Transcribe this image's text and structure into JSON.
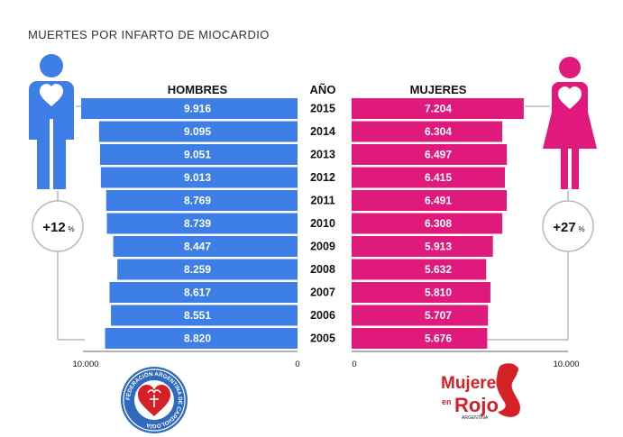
{
  "chart_data": {
    "type": "bar",
    "title": "MUERTES POR INFARTO DE MIOCARDIO",
    "year_header": "AÑO",
    "categories": [
      "2015",
      "2014",
      "2013",
      "2012",
      "2011",
      "2010",
      "2009",
      "2008",
      "2007",
      "2006",
      "2005"
    ],
    "series": [
      {
        "name": "HOMBRES",
        "values": [
          9916,
          9095,
          9051,
          9013,
          8769,
          8739,
          8447,
          8259,
          8617,
          8551,
          8820
        ],
        "labels": [
          "9.916",
          "9.095",
          "9.051",
          "9.013",
          "8.769",
          "8.739",
          "8.447",
          "8.259",
          "8.617",
          "8.551",
          "8.820"
        ],
        "color": "#3d7fe6",
        "change": "+12",
        "change_unit": "%"
      },
      {
        "name": "MUJERES",
        "values": [
          7204,
          6304,
          6497,
          6415,
          6491,
          6308,
          5913,
          5632,
          5810,
          5707,
          5676
        ],
        "labels": [
          "7.204",
          "6.304",
          "6.497",
          "6.415",
          "6.491",
          "6.308",
          "5.913",
          "5.632",
          "5.810",
          "5.707",
          "5.676"
        ],
        "color": "#e0197d",
        "change": "+27",
        "change_unit": "%"
      }
    ],
    "xlim": [
      0,
      10000
    ],
    "axis_ticks": {
      "left_max": "10.000",
      "left_zero": "0",
      "right_zero": "0",
      "right_max": "10.000"
    }
  },
  "logos": {
    "left": "FEDERACIÓN ARGENTINA DE CARDIOLOGÍA",
    "right_line1": "Mujeres",
    "right_line2": "en",
    "right_line3": "Rojo",
    "right_line4": "ARGENTINA"
  },
  "colors": {
    "men": "#3d7fe6",
    "women": "#e0197d",
    "bar_text": "#ffffff",
    "line": "#b9b9b9",
    "logo_blue": "#2e6bbf",
    "logo_red": "#d42027"
  },
  "icons": {
    "men": "man-heart-icon",
    "women": "woman-heart-icon"
  }
}
